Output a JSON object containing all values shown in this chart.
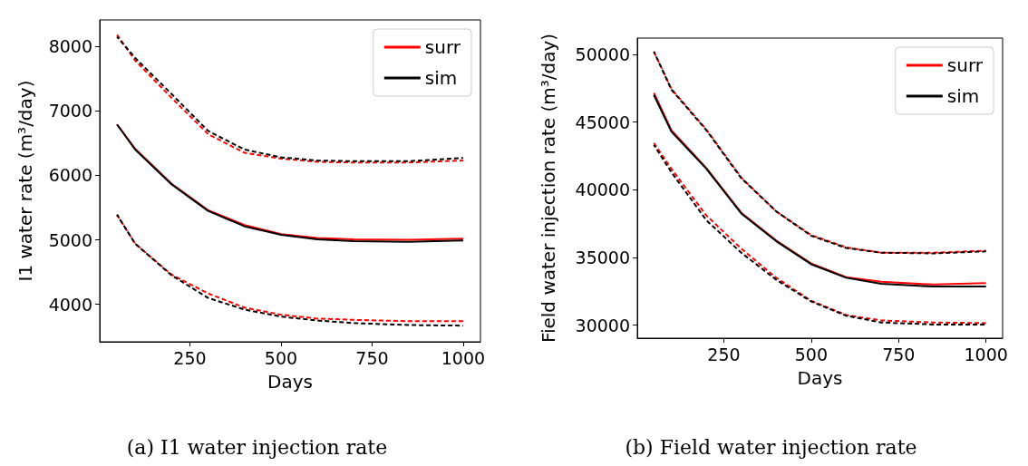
{
  "chart_data": [
    {
      "type": "line",
      "xlabel": "Days",
      "ylabel": "I1 water rate (m³/day)",
      "annotations": [
        "(a) I1 water injection rate"
      ],
      "legend": "top right",
      "xlim": [
        2.5,
        1047.5
      ],
      "xticks": [
        250,
        500,
        750,
        1000
      ],
      "ylim": [
        3420,
        8410
      ],
      "yticks": [
        4000,
        5000,
        6000,
        7000,
        8000
      ],
      "x": [
        50,
        100,
        200,
        300,
        400,
        500,
        600,
        700,
        850,
        1000
      ],
      "series": [
        {
          "name": "surr",
          "color": "#ff0000",
          "line_style": "solid",
          "values": [
            6790,
            6410,
            5870,
            5460,
            5230,
            5090,
            5030,
            5010,
            5000,
            5020
          ]
        },
        {
          "name": "sim",
          "color": "#000000",
          "line_style": "solid",
          "values": [
            6790,
            6400,
            5860,
            5450,
            5210,
            5080,
            5010,
            4980,
            4970,
            4990
          ]
        },
        {
          "color": "#ff0000",
          "line_style": "dashed",
          "values": [
            8180,
            7780,
            7200,
            6640,
            6350,
            6260,
            6210,
            6200,
            6200,
            6230
          ]
        },
        {
          "color": "#000000",
          "line_style": "dashed",
          "values": [
            8150,
            7820,
            7260,
            6690,
            6400,
            6280,
            6230,
            6220,
            6220,
            6270
          ]
        },
        {
          "color": "#ff0000",
          "line_style": "dashed",
          "values": [
            5390,
            4940,
            4460,
            4170,
            3950,
            3840,
            3780,
            3760,
            3740,
            3740
          ]
        },
        {
          "color": "#000000",
          "line_style": "dashed",
          "values": [
            5390,
            4940,
            4450,
            4100,
            3920,
            3810,
            3750,
            3710,
            3680,
            3670
          ]
        }
      ]
    },
    {
      "type": "line",
      "xlabel": "Days",
      "ylabel": "Field water injection rate (m³/day)",
      "annotations": [
        "(b) Field water injection rate"
      ],
      "legend": "top right",
      "xlim": [
        2.5,
        1047.5
      ],
      "xticks": [
        250,
        500,
        750,
        1000
      ],
      "ylim": [
        29040,
        51200
      ],
      "yticks": [
        30000,
        35000,
        40000,
        45000,
        50000
      ],
      "x": [
        50,
        100,
        200,
        300,
        400,
        500,
        600,
        700,
        850,
        1000
      ],
      "series": [
        {
          "name": "surr",
          "color": "#ff0000",
          "line_style": "solid",
          "values": [
            47150,
            44400,
            41600,
            38300,
            36250,
            34550,
            33550,
            33200,
            33000,
            33100
          ]
        },
        {
          "name": "sim",
          "color": "#000000",
          "line_style": "solid",
          "values": [
            47000,
            44300,
            41550,
            38250,
            36200,
            34500,
            33500,
            33050,
            32850,
            32850
          ]
        },
        {
          "color": "#ff0000",
          "line_style": "dashed",
          "values": [
            50200,
            47450,
            44450,
            40900,
            38400,
            36650,
            35750,
            35350,
            35350,
            35500
          ]
        },
        {
          "color": "#000000",
          "line_style": "dashed",
          "values": [
            50200,
            47400,
            44400,
            40850,
            38400,
            36600,
            35700,
            35350,
            35300,
            35450
          ]
        },
        {
          "color": "#ff0000",
          "line_style": "dashed",
          "values": [
            43450,
            41550,
            38100,
            35650,
            33500,
            31800,
            30750,
            30350,
            30200,
            30150
          ]
        },
        {
          "color": "#000000",
          "line_style": "dashed",
          "values": [
            43300,
            41300,
            37750,
            35350,
            33350,
            31750,
            30700,
            30200,
            30050,
            30050
          ]
        }
      ]
    }
  ]
}
